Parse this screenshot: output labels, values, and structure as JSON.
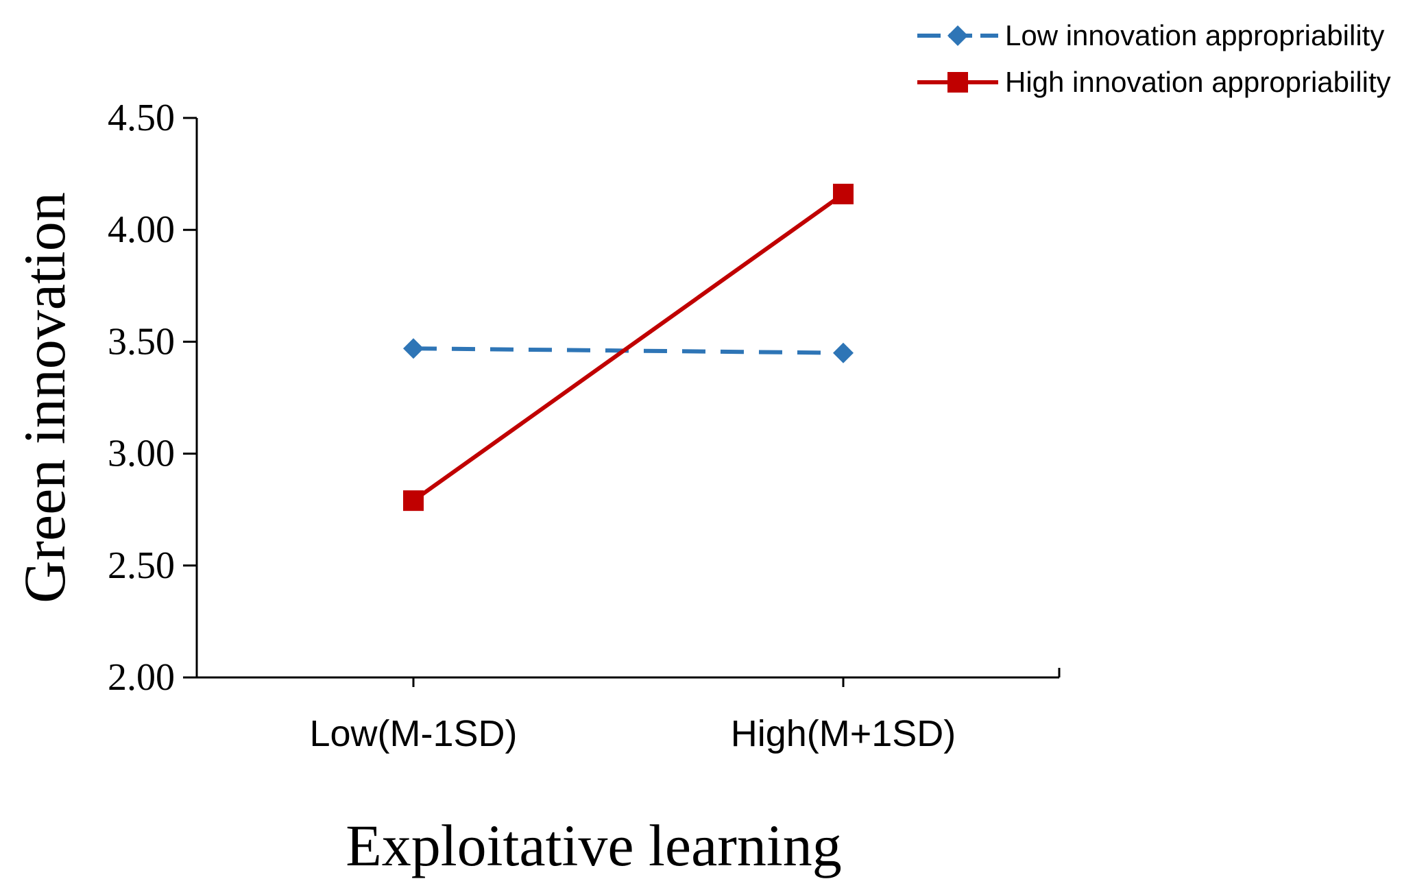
{
  "chart_data": {
    "type": "line",
    "title": "",
    "xlabel": "Exploitative learning",
    "ylabel": "Green innovation",
    "categories": [
      "Low(M-1SD)",
      "High(M+1SD)"
    ],
    "ylim": [
      2.0,
      4.5
    ],
    "yticks": [
      "2.00",
      "2.50",
      "3.00",
      "3.50",
      "4.00",
      "4.50"
    ],
    "grid": false,
    "legend_position": "top-right",
    "series": [
      {
        "name": "Low innovation appropriability",
        "values": [
          3.47,
          3.45
        ],
        "color": "#2e75b6",
        "line_style": "dashed",
        "marker": "diamond"
      },
      {
        "name": "High innovation appropriability",
        "values": [
          2.79,
          4.16
        ],
        "color": "#c00000",
        "line_style": "solid",
        "marker": "square"
      }
    ]
  }
}
